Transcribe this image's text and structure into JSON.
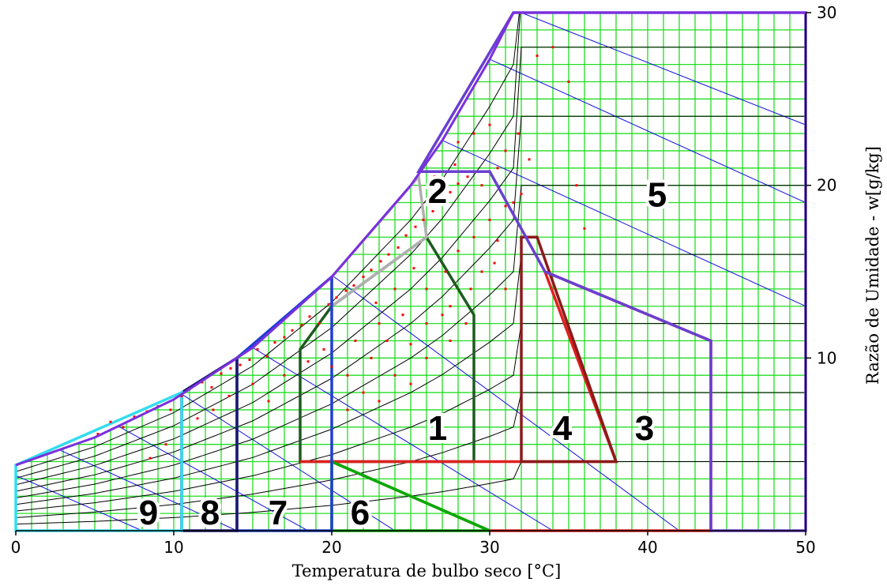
{
  "chart_data": {
    "type": "psychrometric",
    "xlabel": "Temperatura de bulbo seco [°C]",
    "ylabel": "Razão de Umidade - w[g/kg]",
    "xlim": [
      0,
      50
    ],
    "ylim": [
      0,
      30
    ],
    "x_ticks": [
      0,
      10,
      20,
      30,
      40,
      50
    ],
    "y_ticks": [
      10,
      20,
      30
    ],
    "grid": true,
    "colors": {
      "grid": "#22dd22",
      "rh_curves": "#000000",
      "wet_bulb_lines": "#1010e0",
      "data_points": "#ff0000",
      "saturation": "#7b2fe0"
    },
    "saturation_curve": [
      [
        0,
        3.8
      ],
      [
        5,
        5.4
      ],
      [
        10,
        7.6
      ],
      [
        15,
        10.6
      ],
      [
        20,
        14.7
      ],
      [
        25,
        20.0
      ],
      [
        27,
        22.6
      ],
      [
        30,
        27.3
      ],
      [
        31.5,
        30
      ]
    ],
    "zones": [
      {
        "label": "1",
        "label_pos": [
          26.7,
          6.0
        ],
        "color": "#1e5a1e",
        "polygon": [
          [
            18,
            4.0
          ],
          [
            29,
            4.0
          ],
          [
            29,
            12.5
          ],
          [
            26,
            17.0
          ],
          [
            20,
            13.0
          ],
          [
            18,
            10.5
          ]
        ]
      },
      {
        "label": "2",
        "label_pos": [
          26.7,
          19.7
        ],
        "color": "#b0b0b0",
        "polygon": [
          [
            20,
            13.0
          ],
          [
            26,
            17.0
          ],
          [
            25.5,
            20.5
          ],
          [
            20,
            14.7
          ]
        ]
      },
      {
        "label": "3",
        "label_pos": [
          39.8,
          6.0
        ],
        "color": "#e02020",
        "polygon": [
          [
            18,
            4.0
          ],
          [
            38,
            4.0
          ],
          [
            33.5,
            15.0
          ],
          [
            44,
            11.0
          ],
          [
            44,
            0
          ],
          [
            30,
            0
          ],
          [
            20,
            4.0
          ]
        ]
      },
      {
        "label": "4",
        "label_pos": [
          34.6,
          6.0
        ],
        "color": "#8b1a1a",
        "polygon": [
          [
            32,
            4.0
          ],
          [
            38,
            4.0
          ],
          [
            33,
            17.0
          ],
          [
            32,
            17.0
          ]
        ]
      },
      {
        "label": "5",
        "label_pos": [
          40.6,
          19.5
        ],
        "color": "#6a3fd0",
        "polygon": [
          [
            25.5,
            20.8
          ],
          [
            30,
            20.8
          ],
          [
            33.5,
            15.0
          ],
          [
            44,
            11.0
          ],
          [
            44,
            0
          ],
          [
            50,
            0
          ],
          [
            50,
            30
          ],
          [
            31.5,
            30
          ]
        ]
      },
      {
        "label": "6",
        "label_pos": [
          21.8,
          1.1
        ],
        "color": "#00aa00",
        "polygon": [
          [
            20,
            0
          ],
          [
            30,
            0
          ],
          [
            20,
            4.0
          ]
        ]
      },
      {
        "label": "7",
        "label_pos": [
          16.6,
          1.1
        ],
        "color": "#1f3fd0",
        "polygon": [
          [
            14,
            0
          ],
          [
            20,
            0
          ],
          [
            20,
            14.7
          ],
          [
            14,
            10.0
          ]
        ]
      },
      {
        "label": "8",
        "label_pos": [
          12.3,
          1.1
        ],
        "color": "#1a1a6e",
        "polygon": [
          [
            10.5,
            0
          ],
          [
            14,
            0
          ],
          [
            14,
            10.0
          ],
          [
            10.5,
            8.0
          ]
        ]
      },
      {
        "label": "9",
        "label_pos": [
          8.4,
          1.1
        ],
        "color": "#33ddee",
        "polygon": [
          [
            0,
            0
          ],
          [
            10.5,
            0
          ],
          [
            10.5,
            8.0
          ],
          [
            0,
            3.8
          ]
        ]
      }
    ],
    "data_points": [
      [
        5.2,
        5.6
      ],
      [
        6.0,
        6.3
      ],
      [
        6.8,
        6.0
      ],
      [
        7.5,
        6.6
      ],
      [
        8.3,
        6.9
      ],
      [
        9.0,
        7.2
      ],
      [
        9.8,
        7.0
      ],
      [
        10.5,
        7.8
      ],
      [
        11.0,
        8.2
      ],
      [
        11.8,
        8.6
      ],
      [
        12.4,
        8.3
      ],
      [
        13.0,
        9.1
      ],
      [
        13.6,
        9.4
      ],
      [
        14.2,
        9.6
      ],
      [
        14.8,
        9.9
      ],
      [
        15.3,
        10.5
      ],
      [
        15.9,
        10.1
      ],
      [
        16.4,
        10.9
      ],
      [
        17.0,
        11.2
      ],
      [
        17.5,
        11.6
      ],
      [
        18.1,
        11.9
      ],
      [
        18.6,
        12.4
      ],
      [
        19.2,
        12.0
      ],
      [
        19.8,
        13.1
      ],
      [
        20.3,
        13.5
      ],
      [
        20.9,
        13.9
      ],
      [
        21.4,
        14.2
      ],
      [
        22.0,
        14.7
      ],
      [
        22.5,
        15.1
      ],
      [
        23.1,
        15.6
      ],
      [
        23.6,
        16.0
      ],
      [
        24.2,
        16.4
      ],
      [
        24.7,
        17.1
      ],
      [
        25.3,
        17.6
      ],
      [
        25.8,
        18.0
      ],
      [
        26.4,
        18.5
      ],
      [
        27.0,
        19.0
      ],
      [
        27.5,
        19.6
      ],
      [
        28.0,
        20.1
      ],
      [
        28.6,
        20.5
      ],
      [
        22.8,
        13.2
      ],
      [
        24.0,
        14.0
      ],
      [
        25.2,
        15.2
      ],
      [
        26.0,
        14.0
      ],
      [
        27.2,
        15.0
      ],
      [
        28.0,
        16.2
      ],
      [
        29.0,
        17.0
      ],
      [
        30.0,
        18.0
      ],
      [
        31.0,
        18.8
      ],
      [
        32.0,
        19.5
      ],
      [
        21.5,
        11.0
      ],
      [
        23.0,
        12.0
      ],
      [
        24.5,
        12.5
      ],
      [
        26.0,
        12.0
      ],
      [
        27.5,
        13.0
      ],
      [
        28.8,
        14.0
      ],
      [
        30.3,
        15.5
      ],
      [
        26.0,
        10.0
      ],
      [
        27.5,
        11.0
      ],
      [
        28.5,
        12.0
      ],
      [
        20.0,
        9.5
      ],
      [
        21.0,
        9.0
      ],
      [
        22.5,
        10.0
      ],
      [
        23.5,
        11.0
      ],
      [
        25.0,
        10.8
      ],
      [
        24.0,
        9.0
      ],
      [
        22.0,
        8.0
      ],
      [
        21.0,
        7.0
      ],
      [
        23.0,
        7.5
      ],
      [
        25.0,
        8.5
      ],
      [
        29.5,
        20.0
      ],
      [
        30.5,
        21.0
      ],
      [
        31.5,
        19.0
      ],
      [
        32.5,
        21.5
      ],
      [
        31.0,
        22.0
      ],
      [
        33.0,
        27.5
      ],
      [
        34.0,
        28.0
      ],
      [
        35.0,
        26.0
      ],
      [
        35.5,
        20.0
      ],
      [
        36.0,
        17.5
      ],
      [
        28.0,
        22.5
      ],
      [
        29.0,
        23.0
      ],
      [
        30.0,
        23.5
      ],
      [
        31.8,
        23.0
      ],
      [
        26.5,
        20.5
      ],
      [
        27.8,
        21.2
      ],
      [
        30.5,
        16.8
      ],
      [
        29.5,
        15.0
      ],
      [
        31.0,
        14.0
      ],
      [
        27.0,
        12.5
      ],
      [
        8.5,
        4.2
      ],
      [
        9.5,
        5.0
      ],
      [
        11.5,
        6.5
      ],
      [
        12.5,
        7.0
      ],
      [
        13.5,
        7.8
      ],
      [
        15.0,
        8.5
      ],
      [
        16.0,
        7.5
      ],
      [
        17.0,
        9.0
      ],
      [
        18.5,
        9.8
      ],
      [
        19.5,
        10.5
      ]
    ],
    "rh_fractions": [
      0.1,
      0.2,
      0.3,
      0.4,
      0.5,
      0.6,
      0.7,
      0.8,
      0.9
    ],
    "wet_bulb_lines": [
      [
        [
          0,
          3.2
        ],
        [
          8,
          0
        ]
      ],
      [
        [
          2,
          5.0
        ],
        [
          14,
          0
        ]
      ],
      [
        [
          5,
          6.8
        ],
        [
          18.5,
          0
        ]
      ],
      [
        [
          10,
          8.2
        ],
        [
          24,
          0
        ]
      ],
      [
        [
          15,
          10.6
        ],
        [
          34,
          0
        ]
      ],
      [
        [
          20,
          14.8
        ],
        [
          42,
          0
        ]
      ],
      [
        [
          27,
          22.6
        ],
        [
          50,
          13.0
        ]
      ],
      [
        [
          30,
          27.3
        ],
        [
          50,
          19.0
        ]
      ],
      [
        [
          32,
          30
        ],
        [
          50,
          23.5
        ]
      ]
    ],
    "zone_label_list": [
      "1",
      "2",
      "3",
      "4",
      "5",
      "6",
      "7",
      "8",
      "9"
    ]
  }
}
